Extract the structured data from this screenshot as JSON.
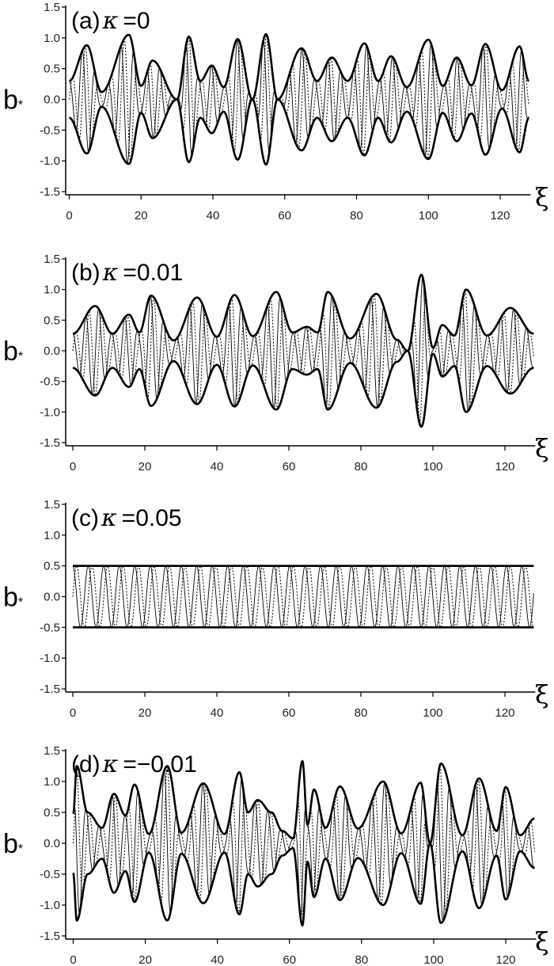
{
  "chart_data": [
    {
      "type": "line",
      "panel_label": "(a)",
      "kappa_symbol": "κ",
      "kappa_value": "=0",
      "ylabel": "b",
      "ylabel_sub": "*",
      "xlabel": "ξ",
      "xlim": [
        0,
        128
      ],
      "ylim": [
        -1.5,
        1.5
      ],
      "xticks": [
        "0",
        "20",
        "40",
        "60",
        "80",
        "100",
        "120"
      ],
      "yticks": [
        "1.5",
        "1.0",
        "0.5",
        "0.0",
        "-0.5",
        "-1.0",
        "-1.5"
      ],
      "grid": false,
      "series": [
        {
          "style": "solid-envelope",
          "points": [
            [
              0,
              0.3
            ],
            [
              4.9,
              0.88
            ],
            [
              9,
              0.12
            ],
            [
              16.6,
              1.05
            ],
            [
              20,
              0.22
            ],
            [
              23.2,
              0.63
            ],
            [
              30,
              0.0
            ],
            [
              33.3,
              1.02
            ],
            [
              36.5,
              0.3
            ],
            [
              39.7,
              0.55
            ],
            [
              43,
              0.2
            ],
            [
              46.9,
              0.98
            ],
            [
              51,
              0.0
            ],
            [
              54.8,
              1.06
            ],
            [
              58,
              0.0
            ],
            [
              64.7,
              0.83
            ],
            [
              69,
              0.3
            ],
            [
              73.1,
              0.68
            ],
            [
              77.5,
              0.3
            ],
            [
              82.2,
              0.91
            ],
            [
              86,
              0.3
            ],
            [
              89.6,
              0.7
            ],
            [
              94,
              0.2
            ],
            [
              100,
              0.97
            ],
            [
              104,
              0.22
            ],
            [
              107.9,
              0.68
            ],
            [
              112,
              0.23
            ],
            [
              115.9,
              0.9
            ],
            [
              120.5,
              0.15
            ],
            [
              125.4,
              0.86
            ],
            [
              128,
              0.3
            ]
          ]
        }
      ]
    },
    {
      "type": "line",
      "panel_label": "(b)",
      "kappa_symbol": "κ",
      "kappa_value": "=0.01",
      "ylabel": "b",
      "ylabel_sub": "*",
      "xlabel": "ξ",
      "xlim": [
        0,
        128
      ],
      "ylim": [
        -1.5,
        1.5
      ],
      "xticks": [
        "0",
        "20",
        "40",
        "60",
        "80",
        "100",
        "120"
      ],
      "yticks": [
        "1.5",
        "1.0",
        "0.5",
        "0.0",
        "-0.5",
        "-1.0",
        "-1.5"
      ],
      "grid": false,
      "series": [
        {
          "style": "solid-envelope",
          "points": [
            [
              0,
              0.28
            ],
            [
              6.2,
              0.73
            ],
            [
              11,
              0.28
            ],
            [
              15.6,
              0.59
            ],
            [
              18.5,
              0.3
            ],
            [
              21.7,
              0.9
            ],
            [
              28,
              0.17
            ],
            [
              34.5,
              0.87
            ],
            [
              40,
              0.23
            ],
            [
              44.9,
              0.91
            ],
            [
              50,
              0.24
            ],
            [
              56.5,
              0.96
            ],
            [
              61,
              0.3
            ],
            [
              65,
              0.39
            ],
            [
              68,
              0.3
            ],
            [
              70.8,
              0.96
            ],
            [
              77,
              0.2
            ],
            [
              84.3,
              0.93
            ],
            [
              90,
              0.18
            ],
            [
              93,
              0.0
            ],
            [
              96.8,
              1.24
            ],
            [
              100,
              0.05
            ],
            [
              102.6,
              0.42
            ],
            [
              106,
              0.25
            ],
            [
              109.2,
              1.0
            ],
            [
              115,
              0.25
            ],
            [
              121.5,
              0.7
            ],
            [
              128,
              0.28
            ]
          ]
        }
      ]
    },
    {
      "type": "line",
      "panel_label": "(c)",
      "kappa_symbol": "κ",
      "kappa_value": "=0.05",
      "ylabel": "b",
      "ylabel_sub": "*",
      "xlabel": "ξ",
      "xlim": [
        0,
        128
      ],
      "ylim": [
        -1.5,
        1.5
      ],
      "xticks": [
        "0",
        "20",
        "40",
        "60",
        "80",
        "100",
        "120"
      ],
      "yticks": [
        "1.5",
        "1.0",
        "0.5",
        "0.0",
        "-0.5",
        "-1.0",
        "-1.5"
      ],
      "grid": false,
      "series": [
        {
          "style": "solid-envelope",
          "points": [
            [
              0,
              0.5
            ],
            [
              128,
              0.5
            ]
          ]
        }
      ]
    },
    {
      "type": "line",
      "panel_label": "(d)",
      "kappa_symbol": "κ",
      "kappa_value": "=−0.01",
      "ylabel": "b",
      "ylabel_sub": "*",
      "xlabel": "ξ",
      "xlim": [
        0,
        128
      ],
      "ylim": [
        -1.5,
        1.5
      ],
      "xticks": [
        "0",
        "20",
        "40",
        "60",
        "80",
        "100",
        "120"
      ],
      "yticks": [
        "1.5",
        "1.0",
        "0.5",
        "0.0",
        "-0.5",
        "-1.0",
        "-1.5"
      ],
      "grid": false,
      "series": [
        {
          "style": "solid-envelope",
          "points": [
            [
              0,
              0.48
            ],
            [
              1.0,
              1.25
            ],
            [
              4,
              0.5
            ],
            [
              8,
              0.25
            ],
            [
              11.3,
              0.8
            ],
            [
              14.5,
              0.45
            ],
            [
              17,
              0.95
            ],
            [
              21,
              0.15
            ],
            [
              26.1,
              1.25
            ],
            [
              30,
              0.17
            ],
            [
              36.1,
              0.97
            ],
            [
              42,
              0.15
            ],
            [
              46.1,
              1.15
            ],
            [
              48.5,
              0.5
            ],
            [
              51.2,
              0.7
            ],
            [
              55,
              0.5
            ],
            [
              58,
              0.2
            ],
            [
              61,
              0.08
            ],
            [
              63.6,
              1.33
            ],
            [
              65,
              0.3
            ],
            [
              66.8,
              0.87
            ],
            [
              70,
              0.25
            ],
            [
              74,
              0.92
            ],
            [
              79,
              0.24
            ],
            [
              86,
              1.0
            ],
            [
              91,
              0.16
            ],
            [
              96.4,
              0.98
            ],
            [
              99,
              0.0
            ],
            [
              102,
              1.29
            ],
            [
              108,
              0.13
            ],
            [
              112.6,
              1.05
            ],
            [
              117.5,
              0.2
            ],
            [
              120,
              0.91
            ],
            [
              124,
              0.13
            ],
            [
              128,
              0.4
            ]
          ]
        }
      ]
    }
  ]
}
